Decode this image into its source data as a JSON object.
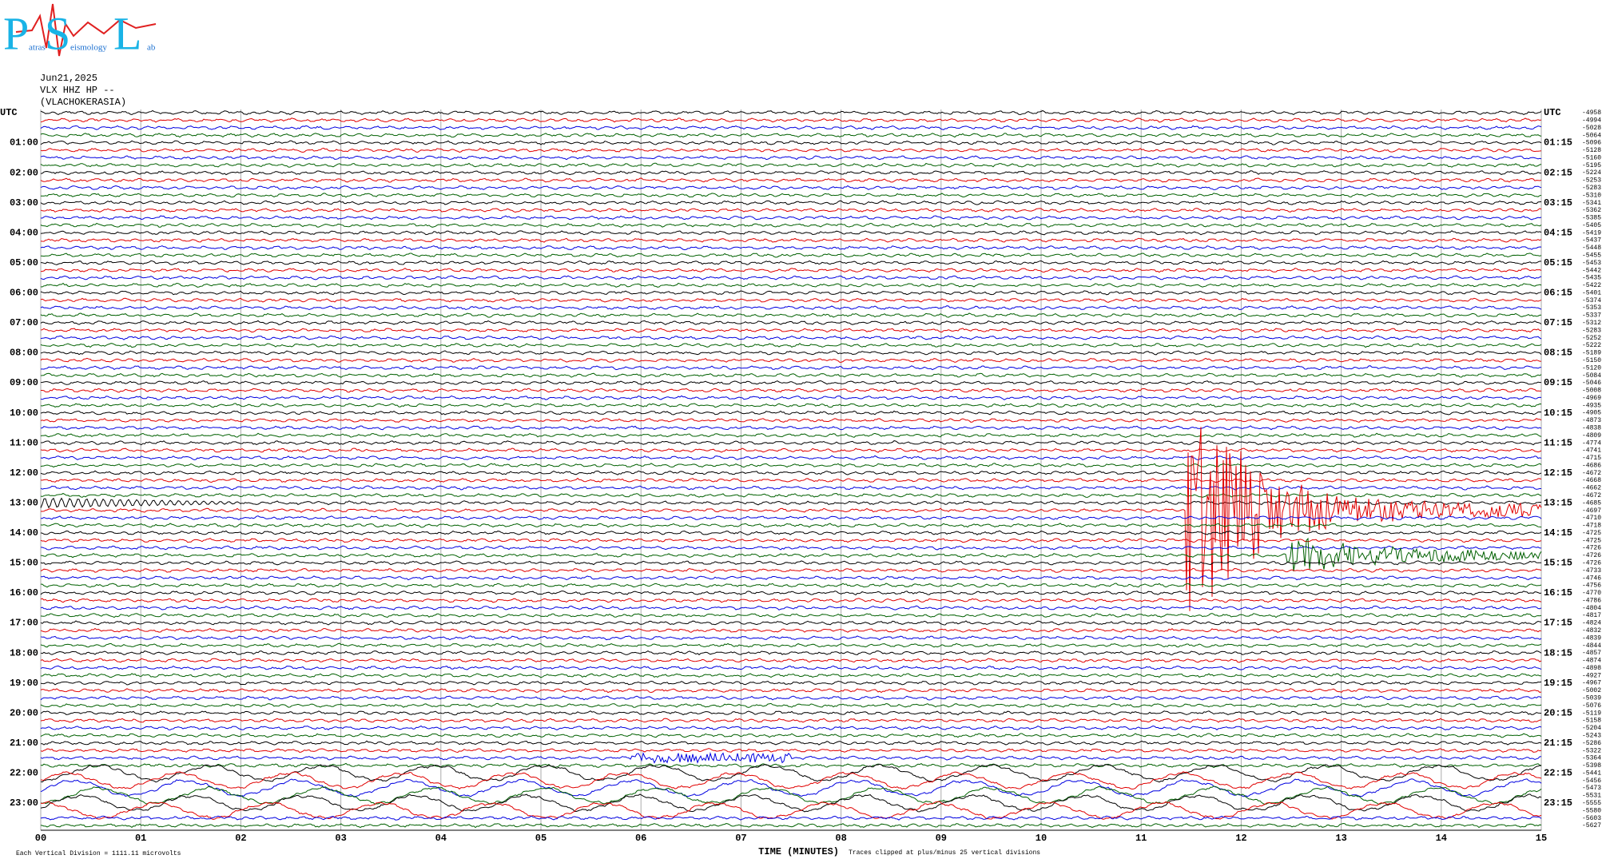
{
  "logo": {
    "letters": [
      "P",
      "S",
      "L"
    ],
    "words": [
      "atras",
      "eismology",
      "ab"
    ]
  },
  "header": [
    "Jun21,2025",
    "VLX HHZ HP --",
    "(VLACHOKERASIA)"
  ],
  "left_labels": [
    "UTC",
    "01:00",
    "02:00",
    "03:00",
    "04:00",
    "05:00",
    "06:00",
    "07:00",
    "08:00",
    "09:00",
    "10:00",
    "11:00",
    "12:00",
    "13:00",
    "14:00",
    "15:00",
    "16:00",
    "17:00",
    "18:00",
    "19:00",
    "20:00",
    "21:00",
    "22:00",
    "23:00"
  ],
  "right_labels": [
    "UTC",
    "01:15",
    "02:15",
    "03:15",
    "04:15",
    "05:15",
    "06:15",
    "07:15",
    "08:15",
    "09:15",
    "10:15",
    "11:15",
    "12:15",
    "13:15",
    "14:15",
    "15:15",
    "16:15",
    "17:15",
    "18:15",
    "19:15",
    "20:15",
    "21:15",
    "22:15",
    "23:15"
  ],
  "right_numbers": [
    "-4958",
    "-4994",
    "-5028",
    "-5064",
    "-5096",
    "-5128",
    "-5160",
    "-5195",
    "-5224",
    "-5253",
    "-5283",
    "-5310",
    "-5341",
    "-5362",
    "-5385",
    "-5405",
    "-5419",
    "-5437",
    "-5448",
    "-5455",
    "-5453",
    "-5442",
    "-5435",
    "-5422",
    "-5401",
    "-5374",
    "-5353",
    "-5337",
    "-5312",
    "-5283",
    "-5252",
    "-5222",
    "-5189",
    "-5150",
    "-5120",
    "-5084",
    "-5046",
    "-5008",
    "-4969",
    "-4935",
    "-4905",
    "-4873",
    "-4838",
    "-4809",
    "-4774",
    "-4741",
    "-4715",
    "-4686",
    "-4672",
    "-4668",
    "-4662",
    "-4672",
    "-4685",
    "-4697",
    "-4710",
    "-4718",
    "-4725",
    "-4725",
    "-4726",
    "-4726",
    "-4726",
    "-4733",
    "-4746",
    "-4756",
    "-4770",
    "-4786",
    "-4804",
    "-4817",
    "-4824",
    "-4832",
    "-4839",
    "-4844",
    "-4857",
    "-4874",
    "-4898",
    "-4927",
    "-4967",
    "-5002",
    "-5039",
    "-5076",
    "-5119",
    "-5158",
    "-5204",
    "-5243",
    "-5286",
    "-5322",
    "-5364",
    "-5398",
    "-5441",
    "-5456",
    "-5473",
    "-5531",
    "-5555",
    "-5580",
    "-5603",
    "-5627"
  ],
  "x_ticks": [
    "00",
    "01",
    "02",
    "03",
    "04",
    "05",
    "06",
    "07",
    "08",
    "09",
    "10",
    "11",
    "12",
    "13",
    "14",
    "15"
  ],
  "footer": {
    "division": "Each Vertical Division = 1111.11 microvolts",
    "x_label": "TIME (MINUTES)",
    "clip": "Traces clipped at plus/minus 25 vertical divisions"
  }
}
